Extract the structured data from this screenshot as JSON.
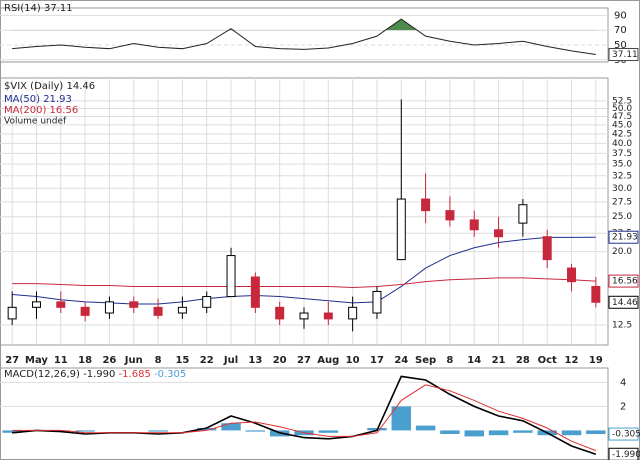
{
  "chart_data": [
    {
      "type": "line",
      "title": "RSI(14)",
      "ylim": [
        27,
        100
      ],
      "yticks": [
        30,
        50,
        70,
        90
      ],
      "overbought": 70,
      "oversold": 30,
      "color": "#222222",
      "fill_color": "#4e8a4e",
      "values": [
        45,
        48,
        50,
        47,
        45,
        52,
        47,
        45,
        52,
        72,
        48,
        45,
        44,
        46,
        52,
        62,
        85,
        62,
        55,
        50,
        52,
        55,
        48,
        42,
        37.11
      ]
    },
    {
      "type": "candlestick",
      "title": "$VIX (Daily)",
      "log_scale": true,
      "grid": true,
      "ylim": [
        11,
        57
      ],
      "yticks": [
        12.5,
        {
          "value": 20,
          "label": "20.0"
        },
        22.5,
        {
          "value": 25,
          "label": "25.0"
        },
        27.5,
        {
          "value": 30,
          "label": "30.0"
        },
        32.5,
        {
          "value": 35,
          "label": "35.0"
        },
        37.5,
        {
          "value": 40,
          "label": "40.0"
        },
        42.5,
        {
          "value": 45,
          "label": "45.0"
        },
        47.5,
        {
          "value": 50,
          "label": "50.0"
        },
        52.5
      ],
      "categories": [
        "27",
        "May",
        "11",
        "18",
        "26",
        "Jun",
        "8",
        "15",
        "22",
        "Jul",
        "13",
        "20",
        "27",
        "Aug",
        "10",
        "17",
        "24",
        "Sep",
        "8",
        "14",
        "21",
        "28",
        "Oct",
        "12",
        "19"
      ],
      "open": [
        13,
        14,
        14.5,
        14,
        13.5,
        14.5,
        14,
        13.5,
        14,
        15,
        17,
        14,
        13,
        13.5,
        13,
        13.5,
        19,
        28,
        26,
        24.5,
        23,
        24,
        22,
        18,
        16
      ],
      "high": [
        15.5,
        15.5,
        15.5,
        14.5,
        15,
        15,
        14.8,
        15,
        15.5,
        20.5,
        17.5,
        14.5,
        14,
        14.5,
        15,
        16,
        53,
        33,
        28.5,
        26,
        25,
        28,
        23,
        18.5,
        17
      ],
      "low": [
        12.5,
        13,
        13.5,
        12.8,
        13,
        13.5,
        13,
        13,
        13.5,
        15,
        13.5,
        12.5,
        12.2,
        12.5,
        12,
        13,
        19,
        24,
        23.5,
        22,
        20.5,
        22,
        18,
        15.5,
        14
      ],
      "close": [
        14,
        14.5,
        14,
        13.3,
        14.5,
        14,
        13.3,
        14,
        15,
        19.5,
        14,
        13,
        13.5,
        13,
        14,
        15.5,
        28,
        26,
        24.5,
        23,
        22,
        27,
        19,
        16.5,
        14.46
      ],
      "series": [
        {
          "name": "MA(50)",
          "color": "#1f2f8f",
          "values": [
            15.2,
            15,
            14.7,
            14.5,
            14.4,
            14.3,
            14.3,
            14.5,
            14.8,
            15,
            15.1,
            15,
            14.8,
            14.6,
            14.4,
            14.5,
            16,
            18,
            19.5,
            20.5,
            21.2,
            21.6,
            21.9,
            21.9,
            21.93
          ]
        },
        {
          "name": "MA(200)",
          "color": "#c8283c",
          "values": [
            16.3,
            16.3,
            16.2,
            16.1,
            16.1,
            16,
            16,
            16,
            16,
            16,
            16,
            16,
            16,
            16,
            15.9,
            16,
            16.2,
            16.5,
            16.7,
            16.8,
            16.9,
            16.9,
            16.8,
            16.7,
            16.56
          ]
        }
      ],
      "volume_label": "Volume undef"
    },
    {
      "type": "macd",
      "title": "MACD(12,26,9)",
      "ylim": [
        -2.3,
        5.2
      ],
      "yticks": [
        2,
        4
      ],
      "series": [
        {
          "name": "MACD",
          "color": "#000000",
          "values": [
            -0.2,
            0,
            -0.1,
            -0.3,
            -0.2,
            -0.2,
            -0.3,
            -0.2,
            0.2,
            1.2,
            0.6,
            -0.2,
            -0.6,
            -0.7,
            -0.5,
            0,
            4.5,
            4.2,
            3,
            2,
            1.2,
            0.8,
            -0.2,
            -1.3,
            -1.99
          ],
          "value_labels": [
            null,
            null,
            null,
            null,
            null,
            null,
            null,
            null,
            null,
            null,
            null,
            null,
            null,
            null,
            null,
            null,
            null,
            null,
            null,
            null,
            null,
            null,
            null,
            null,
            "-1.990"
          ]
        },
        {
          "name": "Signal",
          "color": "#e03030",
          "values": [
            0,
            0,
            0,
            -0.2,
            -0.2,
            -0.2,
            -0.2,
            -0.2,
            0,
            0.6,
            0.7,
            0.3,
            -0.2,
            -0.5,
            -0.5,
            -0.2,
            2.5,
            3.8,
            3.3,
            2.5,
            1.6,
            1,
            0.2,
            -0.9,
            -1.685
          ]
        },
        {
          "name": "Histogram",
          "color": "#4a9fcf",
          "values": [
            -0.2,
            0,
            -0.1,
            -0.1,
            0,
            0,
            -0.1,
            0,
            0.2,
            0.6,
            -0.1,
            -0.5,
            -0.4,
            -0.2,
            0,
            0.2,
            2,
            0.4,
            -0.3,
            -0.5,
            -0.4,
            -0.2,
            -0.4,
            -0.4,
            -0.305
          ]
        }
      ]
    }
  ]
}
